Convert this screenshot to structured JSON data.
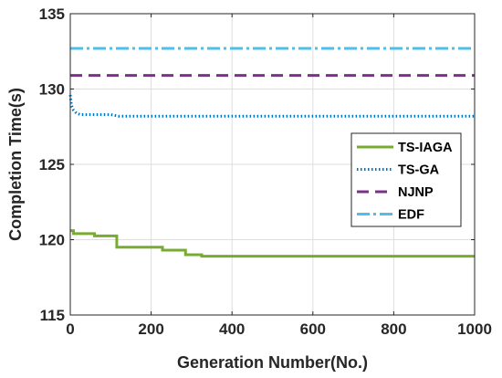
{
  "chart_data": {
    "type": "line",
    "title": "",
    "xlabel": "Generation Number(No.)",
    "ylabel": "Completion Time(s)",
    "xlim": [
      0,
      1000
    ],
    "ylim": [
      115,
      135
    ],
    "xticks": [
      0,
      200,
      400,
      600,
      800,
      1000
    ],
    "yticks": [
      115,
      120,
      125,
      130,
      135
    ],
    "grid": true,
    "legend_position": "right",
    "series": [
      {
        "name": "TS-IAGA",
        "color": "#77AC30",
        "style": "solid",
        "step": true,
        "x": [
          0,
          8,
          8,
          60,
          60,
          115,
          115,
          228,
          228,
          285,
          285,
          325,
          325,
          1000
        ],
        "y": [
          120.6,
          120.6,
          120.4,
          120.4,
          120.25,
          120.25,
          119.5,
          119.5,
          119.3,
          119.3,
          119.0,
          119.0,
          118.9,
          118.9
        ]
      },
      {
        "name": "TS-GA",
        "color": "#0072BD",
        "style": "dotted",
        "step": false,
        "x": [
          0,
          3,
          8,
          15,
          25,
          40,
          60,
          80,
          100,
          120,
          1000
        ],
        "y": [
          129.6,
          128.9,
          128.6,
          128.4,
          128.3,
          128.3,
          128.3,
          128.3,
          128.3,
          128.2,
          128.2
        ]
      },
      {
        "name": "NJNP",
        "color": "#7E2F8E",
        "style": "dashed",
        "step": false,
        "x": [
          0,
          1000
        ],
        "y": [
          130.9,
          130.9
        ]
      },
      {
        "name": "EDF",
        "color": "#4DBEEE",
        "style": "dashdot",
        "step": false,
        "x": [
          0,
          1000
        ],
        "y": [
          132.7,
          132.7
        ]
      }
    ]
  }
}
